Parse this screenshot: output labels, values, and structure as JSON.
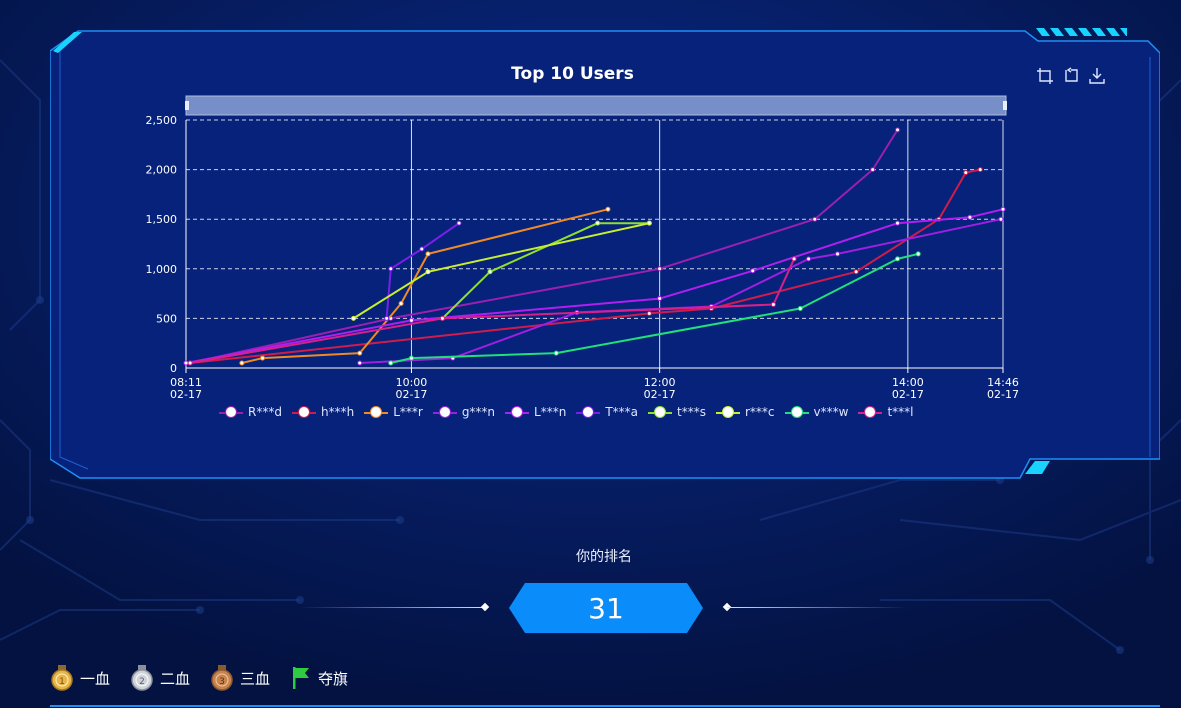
{
  "colors": {
    "background": "#04164a",
    "panel": "#06227a",
    "accent_cyan": "#19d3ff",
    "rank_blue": "#0a8dfb"
  },
  "toolbox": [
    {
      "name": "zoom-icon"
    },
    {
      "name": "zoom-reset-icon"
    },
    {
      "name": "download-icon"
    }
  ],
  "chart_data": {
    "type": "line",
    "title": "Top 10 Users",
    "xlabel": "",
    "ylabel": "",
    "ylim": [
      0,
      2500
    ],
    "y_ticks": [
      "0",
      "500",
      "1,000",
      "1,500",
      "2,000",
      "2,500"
    ],
    "y_tick_values": [
      0,
      500,
      1000,
      1500,
      2000,
      2500
    ],
    "x_range": [
      "08:11",
      "14:46"
    ],
    "x_ticks": [
      {
        "time": "08:11",
        "date": "02-17"
      },
      {
        "time": "10:00",
        "date": "02-17"
      },
      {
        "time": "12:00",
        "date": "02-17"
      },
      {
        "time": "14:00",
        "date": "02-17"
      },
      {
        "time": "14:46",
        "date": "02-17"
      }
    ],
    "grid": true,
    "legend_position": "bottom",
    "series": [
      {
        "name": "R***d",
        "color": "#9b1fb0",
        "points": [
          [
            "08:13",
            50
          ],
          [
            "09:50",
            500
          ],
          [
            "12:00",
            1000
          ],
          [
            "13:15",
            1500
          ],
          [
            "13:43",
            2000
          ],
          [
            "13:55",
            2400
          ]
        ]
      },
      {
        "name": "h***h",
        "color": "#d01c4d",
        "points": [
          [
            "08:13",
            50
          ],
          [
            "11:55",
            550
          ],
          [
            "12:25",
            600
          ],
          [
            "13:35",
            970
          ],
          [
            "14:15",
            1500
          ],
          [
            "14:28",
            1970
          ],
          [
            "14:35",
            2000
          ]
        ]
      },
      {
        "name": "L***r",
        "color": "#f08a24",
        "points": [
          [
            "08:38",
            50
          ],
          [
            "08:48",
            100
          ],
          [
            "09:35",
            150
          ],
          [
            "09:55",
            650
          ],
          [
            "10:08",
            1150
          ],
          [
            "11:35",
            1600
          ]
        ]
      },
      {
        "name": "g***n",
        "color": "#9e1fe0",
        "points": [
          [
            "09:35",
            50
          ],
          [
            "10:20",
            100
          ],
          [
            "11:20",
            560
          ],
          [
            "12:25",
            620
          ],
          [
            "13:12",
            1100
          ],
          [
            "13:26",
            1150
          ],
          [
            "14:45",
            1500
          ]
        ]
      },
      {
        "name": "L***n",
        "color": "#b01ff0",
        "points": [
          [
            "08:11",
            50
          ],
          [
            "10:00",
            480
          ],
          [
            "12:00",
            700
          ],
          [
            "12:45",
            980
          ],
          [
            "13:55",
            1460
          ],
          [
            "14:30",
            1520
          ],
          [
            "14:46",
            1600
          ]
        ]
      },
      {
        "name": "T***a",
        "color": "#7a1fe8",
        "points": [
          [
            "09:48",
            500
          ],
          [
            "09:50",
            1000
          ],
          [
            "10:05",
            1200
          ],
          [
            "10:23",
            1460
          ]
        ]
      },
      {
        "name": "t***s",
        "color": "#8ee02e",
        "points": [
          [
            "10:15",
            500
          ],
          [
            "10:38",
            970
          ],
          [
            "11:30",
            1460
          ],
          [
            "11:55",
            1460
          ]
        ]
      },
      {
        "name": "r***c",
        "color": "#c9ef2c",
        "points": [
          [
            "09:32",
            500
          ],
          [
            "10:08",
            970
          ],
          [
            "11:55",
            1460
          ]
        ]
      },
      {
        "name": "v***w",
        "color": "#20e07a",
        "points": [
          [
            "09:50",
            50
          ],
          [
            "10:00",
            100
          ],
          [
            "11:10",
            150
          ],
          [
            "13:08",
            600
          ],
          [
            "13:55",
            1100
          ],
          [
            "14:05",
            1150
          ]
        ]
      },
      {
        "name": "t***l",
        "color": "#d81f8a",
        "points": [
          [
            "08:13",
            50
          ],
          [
            "10:15",
            500
          ],
          [
            "12:55",
            640
          ],
          [
            "13:05",
            1100
          ]
        ]
      }
    ]
  },
  "rank": {
    "label": "你的排名",
    "value": "31"
  },
  "medals": [
    {
      "label": "一血",
      "icon": "gold-medal-icon",
      "color": "#e7b54a"
    },
    {
      "label": "二血",
      "icon": "silver-medal-icon",
      "color": "#cfd3da"
    },
    {
      "label": "三血",
      "icon": "bronze-medal-icon",
      "color": "#c8844e"
    },
    {
      "label": "夺旗",
      "icon": "flag-icon",
      "color": "#2ecc40"
    }
  ]
}
